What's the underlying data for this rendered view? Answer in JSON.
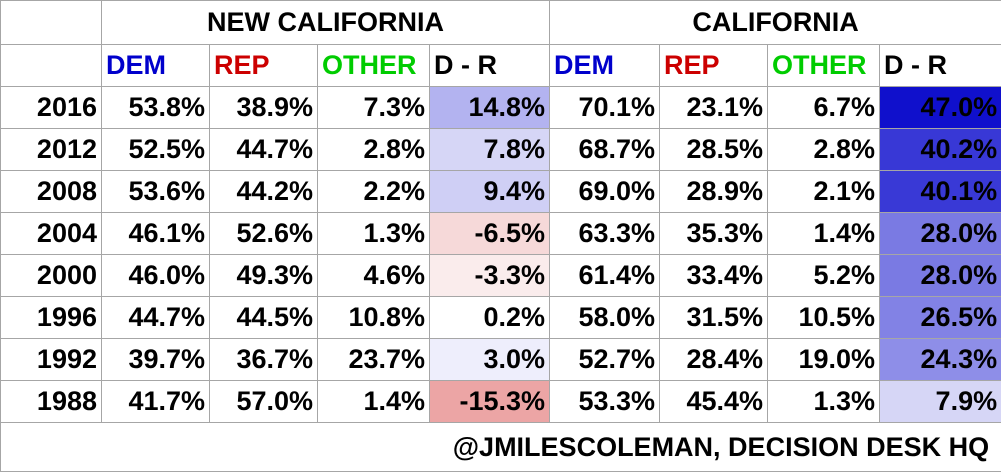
{
  "groups": [
    {
      "label": "NEW CALIFORNIA"
    },
    {
      "label": "CALIFORNIA"
    }
  ],
  "column_headers": [
    {
      "label": "DEM",
      "color": "#0000cc"
    },
    {
      "label": "REP",
      "color": "#cc0000"
    },
    {
      "label": "OTHER",
      "color": "#00cc00"
    },
    {
      "label": "D - R",
      "color": "#000000"
    }
  ],
  "chart_data": {
    "type": "table",
    "title": "",
    "groups": [
      "NEW CALIFORNIA",
      "CALIFORNIA"
    ],
    "columns": [
      "DEM",
      "REP",
      "OTHER",
      "D - R"
    ],
    "rows": [
      {
        "year": "2016",
        "new_california": [
          "53.8%",
          "38.9%",
          "7.3%",
          "14.8%"
        ],
        "california": [
          "70.1%",
          "23.1%",
          "6.7%",
          "47.0%"
        ],
        "nc_shade": "#b3b3f0",
        "ca_shade": "#1010cc"
      },
      {
        "year": "2012",
        "new_california": [
          "52.5%",
          "44.7%",
          "2.8%",
          "7.8%"
        ],
        "california": [
          "68.7%",
          "28.5%",
          "2.8%",
          "40.2%"
        ],
        "nc_shade": "#d6d6f6",
        "ca_shade": "#3838d6"
      },
      {
        "year": "2008",
        "new_california": [
          "53.6%",
          "44.2%",
          "2.2%",
          "9.4%"
        ],
        "california": [
          "69.0%",
          "28.9%",
          "2.1%",
          "40.1%"
        ],
        "nc_shade": "#cfcff5",
        "ca_shade": "#3939d6"
      },
      {
        "year": "2004",
        "new_california": [
          "46.1%",
          "52.6%",
          "1.3%",
          "-6.5%"
        ],
        "california": [
          "63.3%",
          "35.3%",
          "1.4%",
          "28.0%"
        ],
        "nc_shade": "#f6d9d9",
        "ca_shade": "#7a7ae3"
      },
      {
        "year": "2000",
        "new_california": [
          "46.0%",
          "49.3%",
          "4.6%",
          "-3.3%"
        ],
        "california": [
          "61.4%",
          "33.4%",
          "5.2%",
          "28.0%"
        ],
        "nc_shade": "#faecec",
        "ca_shade": "#7a7ae3"
      },
      {
        "year": "1996",
        "new_california": [
          "44.7%",
          "44.5%",
          "10.8%",
          "0.2%"
        ],
        "california": [
          "58.0%",
          "31.5%",
          "10.5%",
          "26.5%"
        ],
        "nc_shade": "#ffffff",
        "ca_shade": "#8282e5"
      },
      {
        "year": "1992",
        "new_california": [
          "39.7%",
          "36.7%",
          "23.7%",
          "3.0%"
        ],
        "california": [
          "52.7%",
          "28.4%",
          "19.0%",
          "24.3%"
        ],
        "nc_shade": "#eeeefc",
        "ca_shade": "#8e8ee8"
      },
      {
        "year": "1988",
        "new_california": [
          "41.7%",
          "57.0%",
          "1.4%",
          "-15.3%"
        ],
        "california": [
          "53.3%",
          "45.4%",
          "1.3%",
          "7.9%"
        ],
        "nc_shade": "#eca5a5",
        "ca_shade": "#d6d6f6"
      }
    ]
  },
  "footer": {
    "credit": "@JMILESCOLEMAN, DECISION DESK HQ"
  }
}
